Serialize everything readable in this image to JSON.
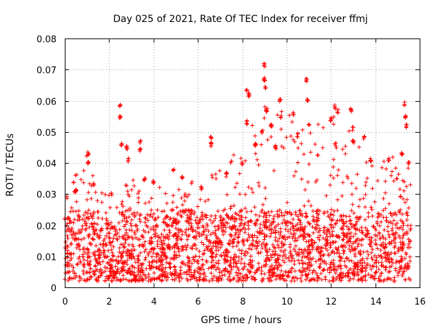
{
  "chart_data": {
    "type": "scatter",
    "title": "Day 025 of 2021, Rate Of TEC Index for receiver ffmj",
    "xlabel": "GPS time / hours",
    "ylabel": "ROTI / TECUs",
    "xlim": [
      0,
      16
    ],
    "ylim": [
      0,
      0.08
    ],
    "xticks": [
      0,
      2,
      4,
      6,
      8,
      10,
      12,
      14,
      16
    ],
    "xtick_labels": [
      "0",
      "2",
      "4",
      "6",
      "8",
      "10",
      "12",
      "14",
      "16"
    ],
    "yticks": [
      0,
      0.01,
      0.02,
      0.03,
      0.04,
      0.05,
      0.06,
      0.07,
      0.08
    ],
    "ytick_labels": [
      "0",
      "0.01",
      "0.02",
      "0.03",
      "0.04",
      "0.05",
      "0.06",
      "0.07",
      "0.08"
    ],
    "grid": true,
    "marker": "+",
    "series": [
      {
        "name": "ROTI",
        "color": "#ff0000",
        "x_range": [
          0,
          15.6
        ],
        "dense_band": [
          0.002,
          0.025
        ],
        "envelope": [
          {
            "x": 0.0,
            "y": 0.03
          },
          {
            "x": 1.0,
            "y": 0.043
          },
          {
            "x": 2.0,
            "y": 0.03
          },
          {
            "x": 3.0,
            "y": 0.035
          },
          {
            "x": 4.0,
            "y": 0.032
          },
          {
            "x": 5.0,
            "y": 0.034
          },
          {
            "x": 6.0,
            "y": 0.036
          },
          {
            "x": 7.0,
            "y": 0.038
          },
          {
            "x": 8.0,
            "y": 0.047
          },
          {
            "x": 9.0,
            "y": 0.06
          },
          {
            "x": 10.0,
            "y": 0.058
          },
          {
            "x": 11.0,
            "y": 0.05
          },
          {
            "x": 12.0,
            "y": 0.057
          },
          {
            "x": 13.0,
            "y": 0.051
          },
          {
            "x": 14.0,
            "y": 0.042
          },
          {
            "x": 15.0,
            "y": 0.045
          },
          {
            "x": 15.6,
            "y": 0.04
          }
        ],
        "clusters": [
          {
            "x": 0.1,
            "y": 0.029
          },
          {
            "x": 0.5,
            "y": 0.031
          },
          {
            "x": 1.05,
            "y": 0.043
          },
          {
            "x": 1.05,
            "y": 0.04
          },
          {
            "x": 1.3,
            "y": 0.033
          },
          {
            "x": 2.1,
            "y": 0.03
          },
          {
            "x": 2.5,
            "y": 0.0585
          },
          {
            "x": 2.5,
            "y": 0.055
          },
          {
            "x": 2.55,
            "y": 0.046
          },
          {
            "x": 2.8,
            "y": 0.045
          },
          {
            "x": 2.85,
            "y": 0.041
          },
          {
            "x": 3.4,
            "y": 0.047
          },
          {
            "x": 3.4,
            "y": 0.044
          },
          {
            "x": 3.6,
            "y": 0.035
          },
          {
            "x": 4.0,
            "y": 0.034
          },
          {
            "x": 4.9,
            "y": 0.038
          },
          {
            "x": 5.3,
            "y": 0.035
          },
          {
            "x": 6.15,
            "y": 0.032
          },
          {
            "x": 6.6,
            "y": 0.048
          },
          {
            "x": 6.6,
            "y": 0.046
          },
          {
            "x": 7.3,
            "y": 0.037
          },
          {
            "x": 7.5,
            "y": 0.04
          },
          {
            "x": 8.0,
            "y": 0.04
          },
          {
            "x": 8.2,
            "y": 0.063
          },
          {
            "x": 8.2,
            "y": 0.053
          },
          {
            "x": 8.3,
            "y": 0.062
          },
          {
            "x": 8.6,
            "y": 0.046
          },
          {
            "x": 8.9,
            "y": 0.05
          },
          {
            "x": 9.0,
            "y": 0.0715
          },
          {
            "x": 9.0,
            "y": 0.067
          },
          {
            "x": 9.05,
            "y": 0.064
          },
          {
            "x": 9.1,
            "y": 0.057
          },
          {
            "x": 9.3,
            "y": 0.052
          },
          {
            "x": 9.5,
            "y": 0.045
          },
          {
            "x": 9.7,
            "y": 0.06
          },
          {
            "x": 9.75,
            "y": 0.055
          },
          {
            "x": 10.3,
            "y": 0.056
          },
          {
            "x": 10.5,
            "y": 0.049
          },
          {
            "x": 10.9,
            "y": 0.0665
          },
          {
            "x": 10.95,
            "y": 0.06
          },
          {
            "x": 11.0,
            "y": 0.052
          },
          {
            "x": 11.4,
            "y": 0.042
          },
          {
            "x": 12.0,
            "y": 0.054
          },
          {
            "x": 12.2,
            "y": 0.058
          },
          {
            "x": 12.3,
            "y": 0.0565
          },
          {
            "x": 12.2,
            "y": 0.046
          },
          {
            "x": 12.9,
            "y": 0.057
          },
          {
            "x": 13.0,
            "y": 0.051
          },
          {
            "x": 13.0,
            "y": 0.047
          },
          {
            "x": 13.5,
            "y": 0.048
          },
          {
            "x": 13.8,
            "y": 0.041
          },
          {
            "x": 14.6,
            "y": 0.041
          },
          {
            "x": 15.2,
            "y": 0.043
          },
          {
            "x": 15.3,
            "y": 0.059
          },
          {
            "x": 15.35,
            "y": 0.055
          },
          {
            "x": 15.4,
            "y": 0.052
          },
          {
            "x": 15.5,
            "y": 0.04
          }
        ]
      }
    ]
  }
}
